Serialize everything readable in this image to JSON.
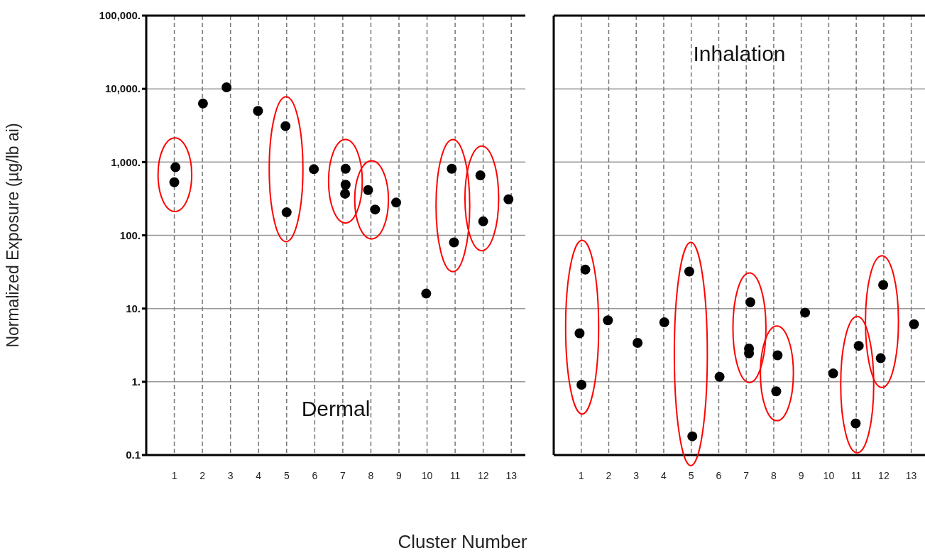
{
  "chart_data": [
    {
      "type": "scatter",
      "title": "Dermal",
      "xlabel": "Cluster Number",
      "ylabel": "Normalized Exposure (µg/lb ai)",
      "log": "y",
      "grid": true,
      "marker": "circle",
      "xlim": [
        0,
        13.5
      ],
      "xticks": [
        1,
        2,
        3,
        4,
        5,
        6,
        7,
        8,
        9,
        10,
        11,
        12,
        13
      ],
      "ylim": [
        0.1,
        100000
      ],
      "yticks": [
        {
          "value": 100000,
          "label": "100,000."
        },
        {
          "value": 10000,
          "label": "10,000."
        },
        {
          "value": 1000,
          "label": "1,000."
        },
        {
          "value": 100,
          "label": "100."
        },
        {
          "value": 10,
          "label": "10."
        },
        {
          "value": 1,
          "label": "1."
        },
        0.1
      ],
      "series": [
        {
          "color": "#000000",
          "x": [
            1.04,
            1.0,
            2.02,
            2.86,
            3.98,
            4.96,
            5.0,
            5.97,
            7.1,
            7.1,
            7.08,
            7.9,
            8.15,
            8.9,
            9.97,
            10.88,
            10.96,
            11.9,
            12.0,
            12.9
          ],
          "values": [
            850,
            530,
            6300,
            10500,
            5000,
            3100,
            206,
            800,
            810,
            490,
            370,
            415,
            225,
            280,
            16,
            810,
            80,
            660,
            155,
            310
          ]
        }
      ]
    },
    {
      "type": "scatter",
      "title": "Inhalation",
      "log": "y",
      "grid": true,
      "marker": "circle",
      "tick_labels": "x",
      "xlim": [
        0,
        13.5
      ],
      "xticks": [
        1,
        2,
        3,
        4,
        5,
        6,
        7,
        8,
        9,
        10,
        11,
        12,
        13
      ],
      "ylim": [
        0.1,
        100000
      ],
      "yticks": [
        100000,
        10000,
        1000,
        100,
        10,
        1,
        0.1
      ],
      "series": [
        {
          "color": "#000000",
          "x": [
            1.15,
            0.94,
            1.01,
            1.97,
            3.05,
            4.02,
            4.93,
            5.04,
            6.03,
            7.15,
            7.1,
            7.1,
            8.14,
            8.09,
            9.14,
            10.16,
            11.09,
            10.98,
            11.98,
            11.89,
            13.1
          ],
          "values": [
            34,
            4.6,
            0.91,
            6.9,
            3.4,
            6.5,
            32,
            0.18,
            1.17,
            12.2,
            2.85,
            2.45,
            2.3,
            0.74,
            8.8,
            1.3,
            3.1,
            0.27,
            21,
            2.1,
            6.1
          ]
        }
      ]
    }
  ]
}
